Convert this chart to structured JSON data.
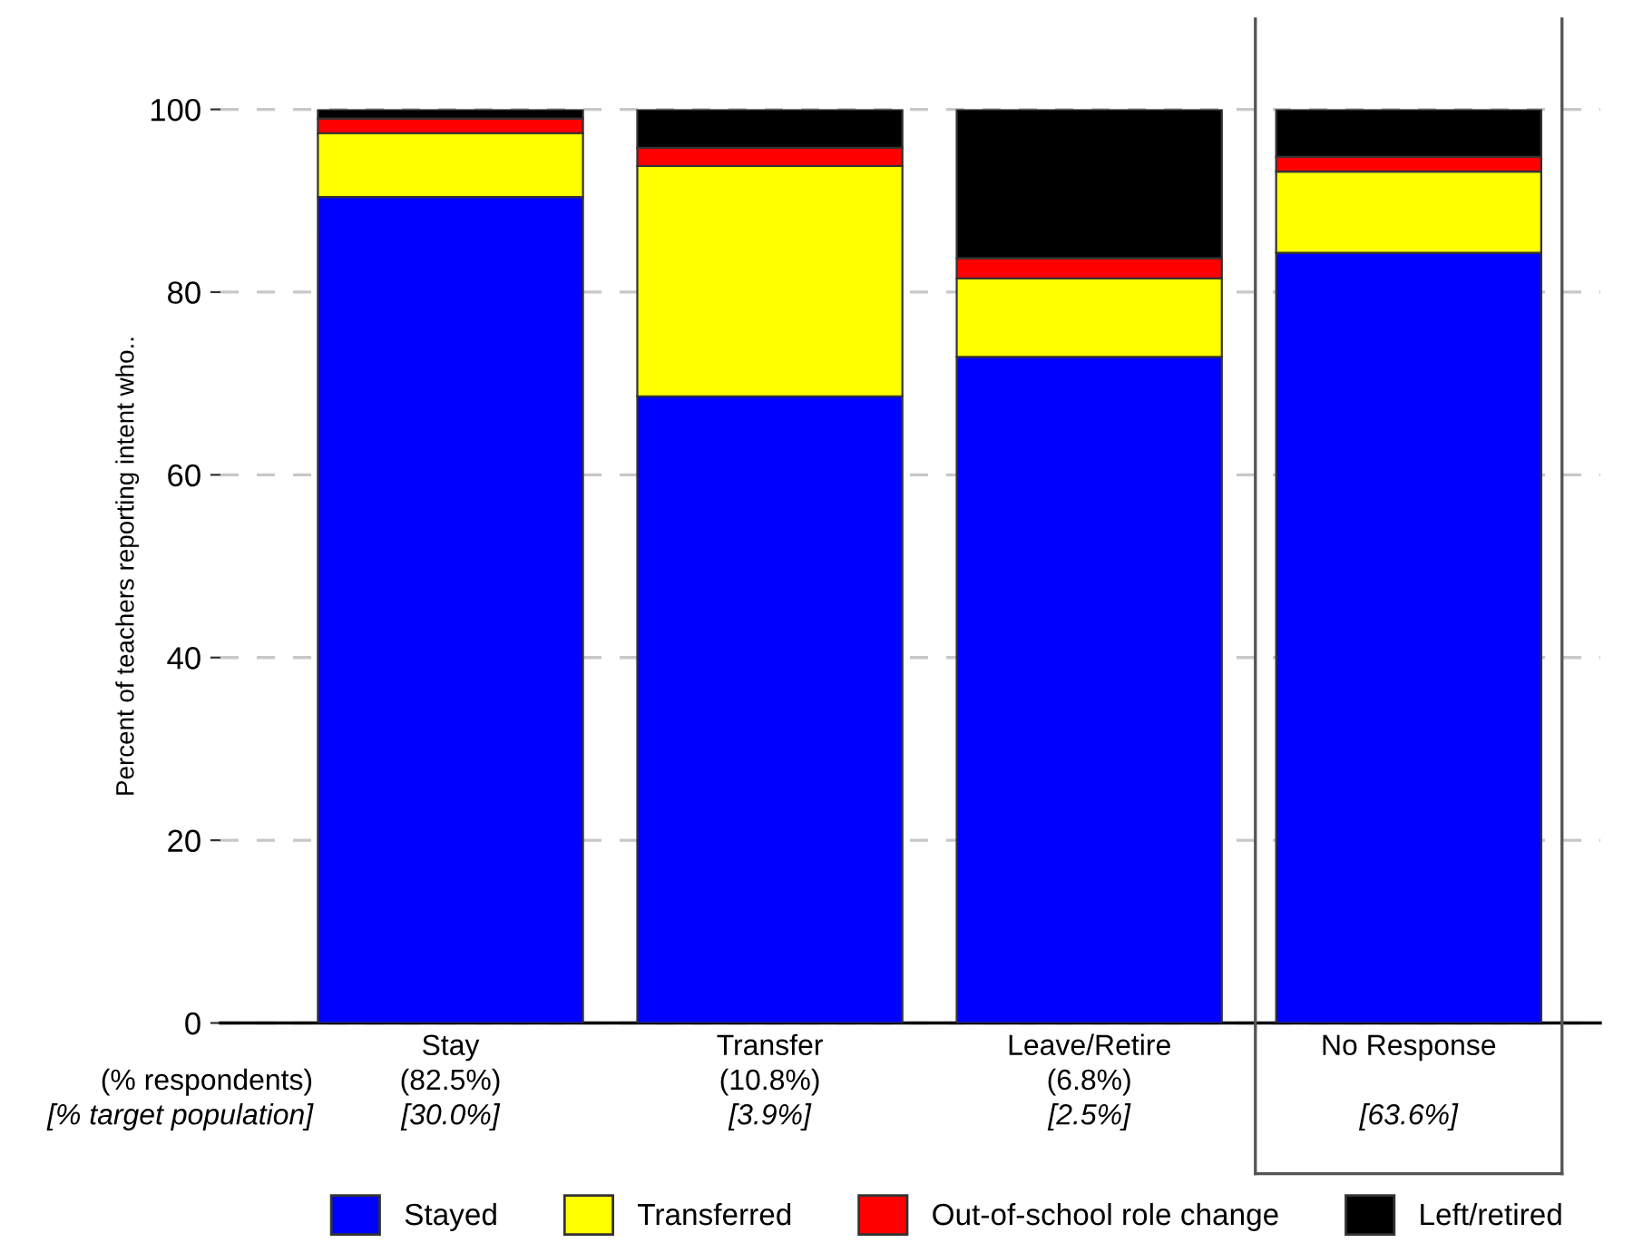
{
  "chart_data": {
    "type": "bar",
    "stacked": true,
    "ylabel": "Percent of teachers reporting intent who..",
    "categories": [
      "Stay\n(82.5%)\n[30.0%]",
      "Transfer\n(10.8%)\n[3.9%]",
      "Leave/Retire\n(6.8%)\n[2.5%]",
      "No Response\n\n[63.6%]"
    ],
    "series": [
      {
        "name": "Stayed",
        "color": "#0000ff",
        "values": [
          90.4,
          68.6,
          72.9,
          84.3
        ]
      },
      {
        "name": "Transferred",
        "color": "#ffff00",
        "values": [
          7.0,
          25.2,
          8.6,
          8.9
        ]
      },
      {
        "name": "Out-of-school role change",
        "color": "#ff0000",
        "values": [
          1.6,
          2.0,
          2.2,
          1.6
        ]
      },
      {
        "name": "Left/retired",
        "color": "#000000",
        "values": [
          1.0,
          4.2,
          16.3,
          5.2
        ]
      }
    ],
    "ylim": [
      0,
      100
    ],
    "yticks": [
      0,
      20,
      40,
      60,
      80,
      100
    ],
    "grid": "y",
    "legend": "bottom",
    "annotations": [
      "(% respondents)",
      "[% target population]"
    ]
  }
}
